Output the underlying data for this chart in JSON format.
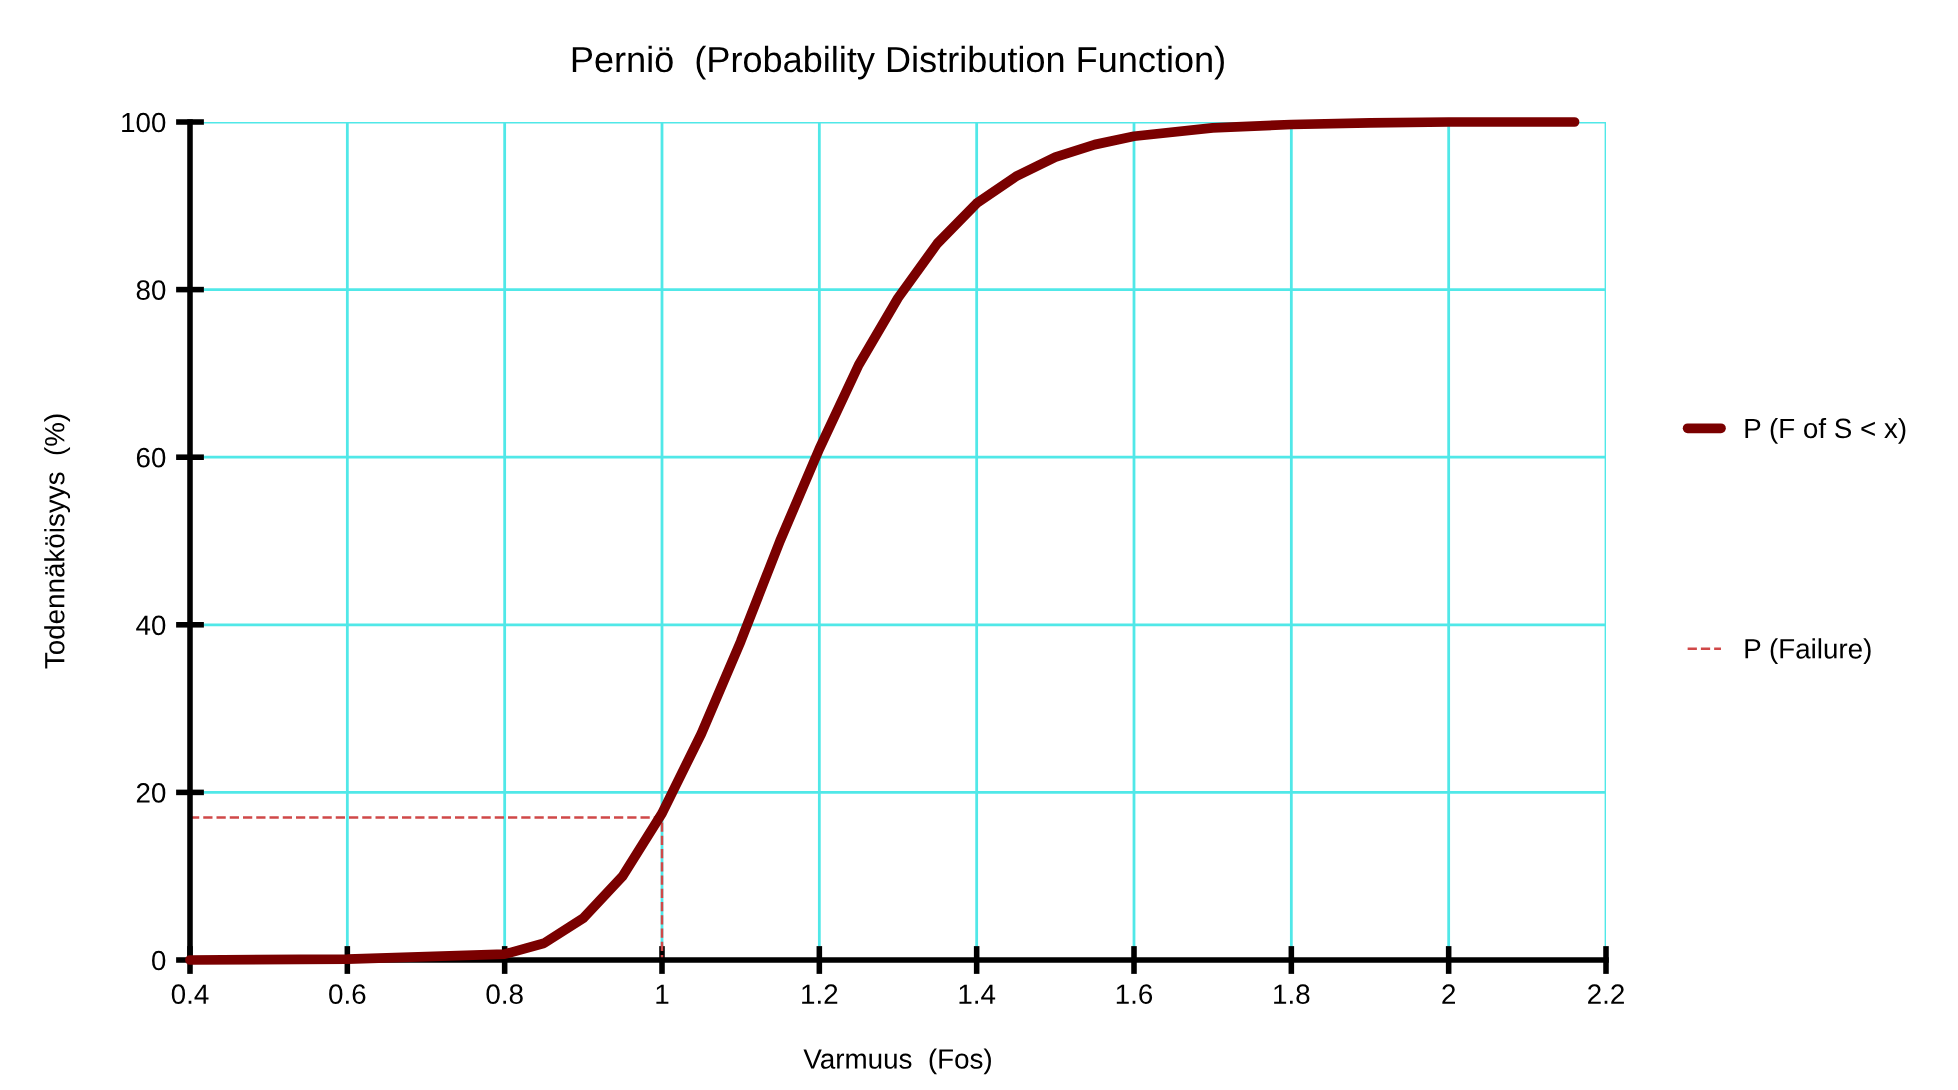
{
  "chart_data": {
    "type": "line",
    "title": "Perniö  (Probability Distribution Function)",
    "xlabel": "Varmuus  (Fos)",
    "ylabel": "Todennäköisyys  (%)",
    "xlim": [
      0.4,
      2.2
    ],
    "xticks": [
      0.4,
      0.6,
      0.8,
      1,
      1.2,
      1.4,
      1.6,
      1.8,
      2,
      2.2
    ],
    "ylim": [
      0,
      100
    ],
    "yticks": [
      0,
      20,
      40,
      60,
      80,
      100
    ],
    "grid": true,
    "legend": "right",
    "marker": "none",
    "series": [
      {
        "name": "P (F of S < x)",
        "color": "#7a0000",
        "line_style": "solid",
        "x": [
          0.4,
          0.6,
          0.8,
          0.85,
          0.9,
          0.95,
          1.0,
          1.05,
          1.1,
          1.15,
          1.2,
          1.25,
          1.3,
          1.35,
          1.4,
          1.45,
          1.5,
          1.55,
          1.6,
          1.7,
          1.8,
          1.9,
          2.0,
          2.16
        ],
        "values": [
          0,
          0.1,
          0.7,
          2,
          5,
          10,
          17.5,
          27,
          38,
          50,
          61,
          71,
          79,
          85.5,
          90.3,
          93.5,
          95.8,
          97.3,
          98.3,
          99.3,
          99.7,
          99.9,
          100,
          100
        ]
      },
      {
        "name": "P (Failure)",
        "color": "#d04848",
        "line_style": "dashed",
        "x": [
          0.4,
          1,
          1
        ],
        "values": [
          17,
          17,
          0
        ]
      }
    ]
  }
}
